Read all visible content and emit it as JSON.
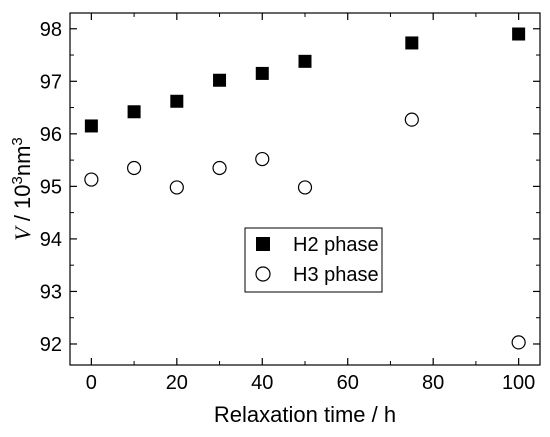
{
  "chart_data": {
    "type": "scatter",
    "xlabel": "Relaxation time / h",
    "ylabel_italic": "V",
    "ylabel_rest": " / 10",
    "ylabel_sup1": "3",
    "ylabel_unit": "nm",
    "ylabel_sup2": "3",
    "xlim": [
      -5,
      105
    ],
    "ylim": [
      91.6,
      98.3
    ],
    "xticks": [
      0,
      20,
      40,
      60,
      80,
      100
    ],
    "yticks": [
      92,
      93,
      94,
      95,
      96,
      97,
      98
    ],
    "grid": false,
    "legend_position": "center",
    "series": [
      {
        "name": "H2 phase",
        "marker": "filled-square",
        "x": [
          0,
          10,
          20,
          30,
          40,
          50,
          75,
          100
        ],
        "y": [
          96.15,
          96.42,
          96.62,
          97.02,
          97.15,
          97.38,
          97.73,
          97.9
        ]
      },
      {
        "name": "H3 phase",
        "marker": "open-circle",
        "x": [
          0,
          10,
          20,
          30,
          40,
          50,
          75,
          100
        ],
        "y": [
          95.13,
          95.35,
          94.98,
          95.35,
          95.52,
          94.98,
          96.27,
          92.03
        ]
      }
    ]
  }
}
